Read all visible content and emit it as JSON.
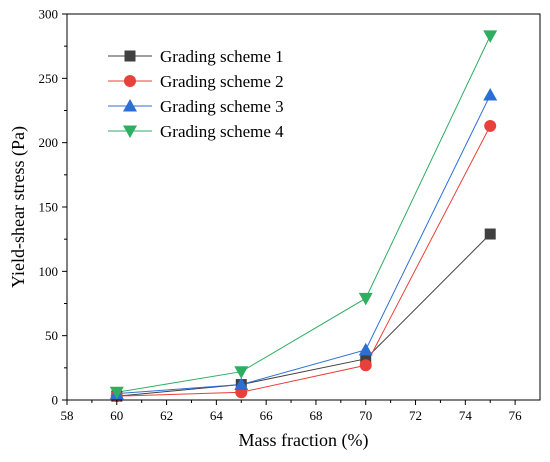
{
  "chart_data": {
    "type": "line",
    "xlabel": "Mass fraction (%)",
    "ylabel": "Yield-shear stress (Pa)",
    "xlim": [
      58,
      77
    ],
    "ylim": [
      0,
      300
    ],
    "xticks": [
      58,
      60,
      62,
      64,
      66,
      68,
      70,
      72,
      74,
      76
    ],
    "yticks": [
      0,
      50,
      100,
      150,
      200,
      250,
      300
    ],
    "x": [
      60,
      65,
      70,
      75
    ],
    "legend_position": "top-left",
    "grid": false,
    "series": [
      {
        "name": "Grading scheme 1",
        "values": [
          3,
          12,
          32,
          129
        ],
        "color": "#404040",
        "marker": "square"
      },
      {
        "name": "Grading scheme 2",
        "values": [
          3,
          6,
          27,
          213
        ],
        "color": "#e8403a",
        "marker": "circle"
      },
      {
        "name": "Grading scheme 3",
        "values": [
          5,
          12,
          39,
          237
        ],
        "color": "#2b6fd6",
        "marker": "triangle-up"
      },
      {
        "name": "Grading scheme 4",
        "values": [
          6,
          22,
          79,
          283
        ],
        "color": "#2fae62",
        "marker": "triangle-down"
      }
    ]
  }
}
